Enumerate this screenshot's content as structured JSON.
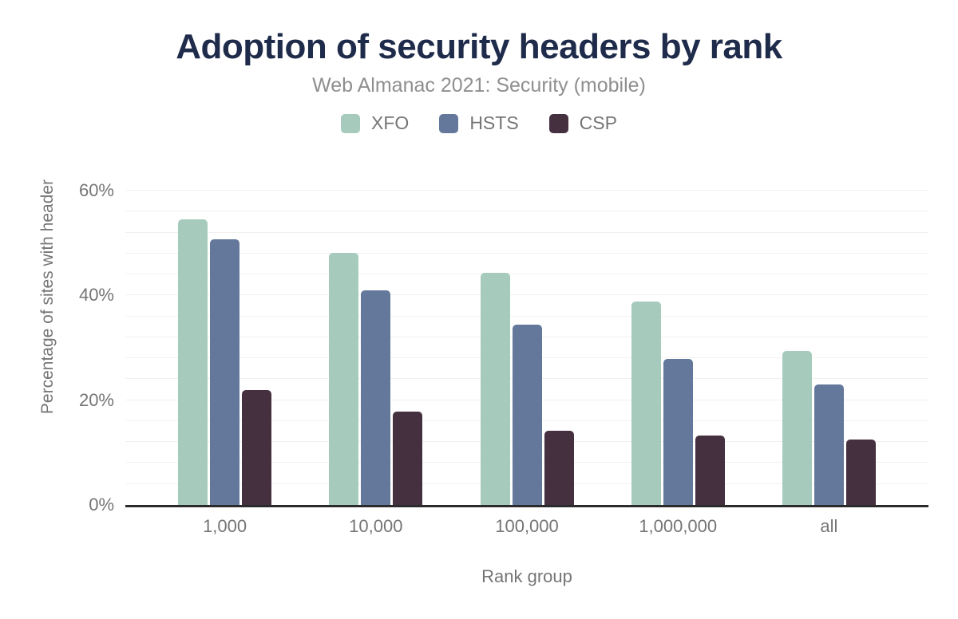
{
  "chart_data": {
    "type": "bar",
    "title": "Adoption of security headers by rank",
    "subtitle": "Web Almanac 2021: Security (mobile)",
    "categories": [
      "1,000",
      "10,000",
      "100,000",
      "1,000,000",
      "all"
    ],
    "series": [
      {
        "name": "XFO",
        "color": "#a6cbbc",
        "values": [
          54.6,
          48.1,
          44.3,
          38.8,
          29.4
        ]
      },
      {
        "name": "HSTS",
        "color": "#64789c",
        "values": [
          50.7,
          40.9,
          34.4,
          27.9,
          23.0
        ]
      },
      {
        "name": "CSP",
        "color": "#45303f",
        "values": [
          22.0,
          17.8,
          14.1,
          13.2,
          12.5
        ]
      }
    ],
    "xlabel": "Rank group",
    "ylabel": "Percentage of sites with header",
    "ylim": [
      0,
      60
    ],
    "yticks": [
      {
        "value": 0,
        "label": "0%"
      },
      {
        "value": 20,
        "label": "20%"
      },
      {
        "value": 40,
        "label": "40%"
      },
      {
        "value": 60,
        "label": "60%"
      }
    ],
    "minor_grid_step": 4,
    "grid": true,
    "legend_position": "top",
    "colors": {
      "title_text": "#1e2b4a",
      "subtitle_text": "#8f8f8f",
      "axis_text": "#757575",
      "axis_line": "#2b2b2b",
      "gridline": "#f1f1f1",
      "background": "#ffffff"
    }
  }
}
